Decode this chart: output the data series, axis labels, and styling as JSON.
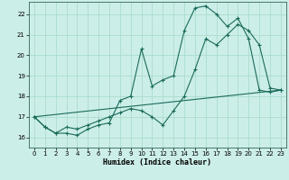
{
  "xlabel": "Humidex (Indice chaleur)",
  "bg_color": "#cceee8",
  "line_color": "#1a6b5a",
  "grid_color": "#aaddcc",
  "xlim": [
    -0.5,
    23.5
  ],
  "ylim": [
    15.5,
    22.6
  ],
  "yticks": [
    16,
    17,
    18,
    19,
    20,
    21,
    22
  ],
  "xticks": [
    0,
    1,
    2,
    3,
    4,
    5,
    6,
    7,
    8,
    9,
    10,
    11,
    12,
    13,
    14,
    15,
    16,
    17,
    18,
    19,
    20,
    21,
    22,
    23
  ],
  "series1_x": [
    0,
    1,
    2,
    3,
    4,
    5,
    6,
    7,
    8,
    9,
    10,
    11,
    12,
    13,
    14,
    15,
    16,
    17,
    18,
    19,
    20,
    21,
    22,
    23
  ],
  "series1_y": [
    17.0,
    16.5,
    16.2,
    16.2,
    16.1,
    16.4,
    16.6,
    16.7,
    17.8,
    18.0,
    20.3,
    18.5,
    18.8,
    19.0,
    21.2,
    22.3,
    22.4,
    22.0,
    21.4,
    21.8,
    20.8,
    18.3,
    18.2,
    18.3
  ],
  "series2_x": [
    0,
    1,
    2,
    3,
    4,
    5,
    6,
    7,
    8,
    9,
    10,
    11,
    12,
    13,
    14,
    15,
    16,
    17,
    18,
    19,
    20,
    21,
    22,
    23
  ],
  "series2_y": [
    17.0,
    16.5,
    16.2,
    16.5,
    16.4,
    16.6,
    16.8,
    17.0,
    17.2,
    17.4,
    17.3,
    17.0,
    16.6,
    17.3,
    18.0,
    19.3,
    20.8,
    20.5,
    21.0,
    21.5,
    21.2,
    20.5,
    18.4,
    18.3
  ],
  "series3_x": [
    0,
    23
  ],
  "series3_y": [
    17.0,
    18.3
  ]
}
